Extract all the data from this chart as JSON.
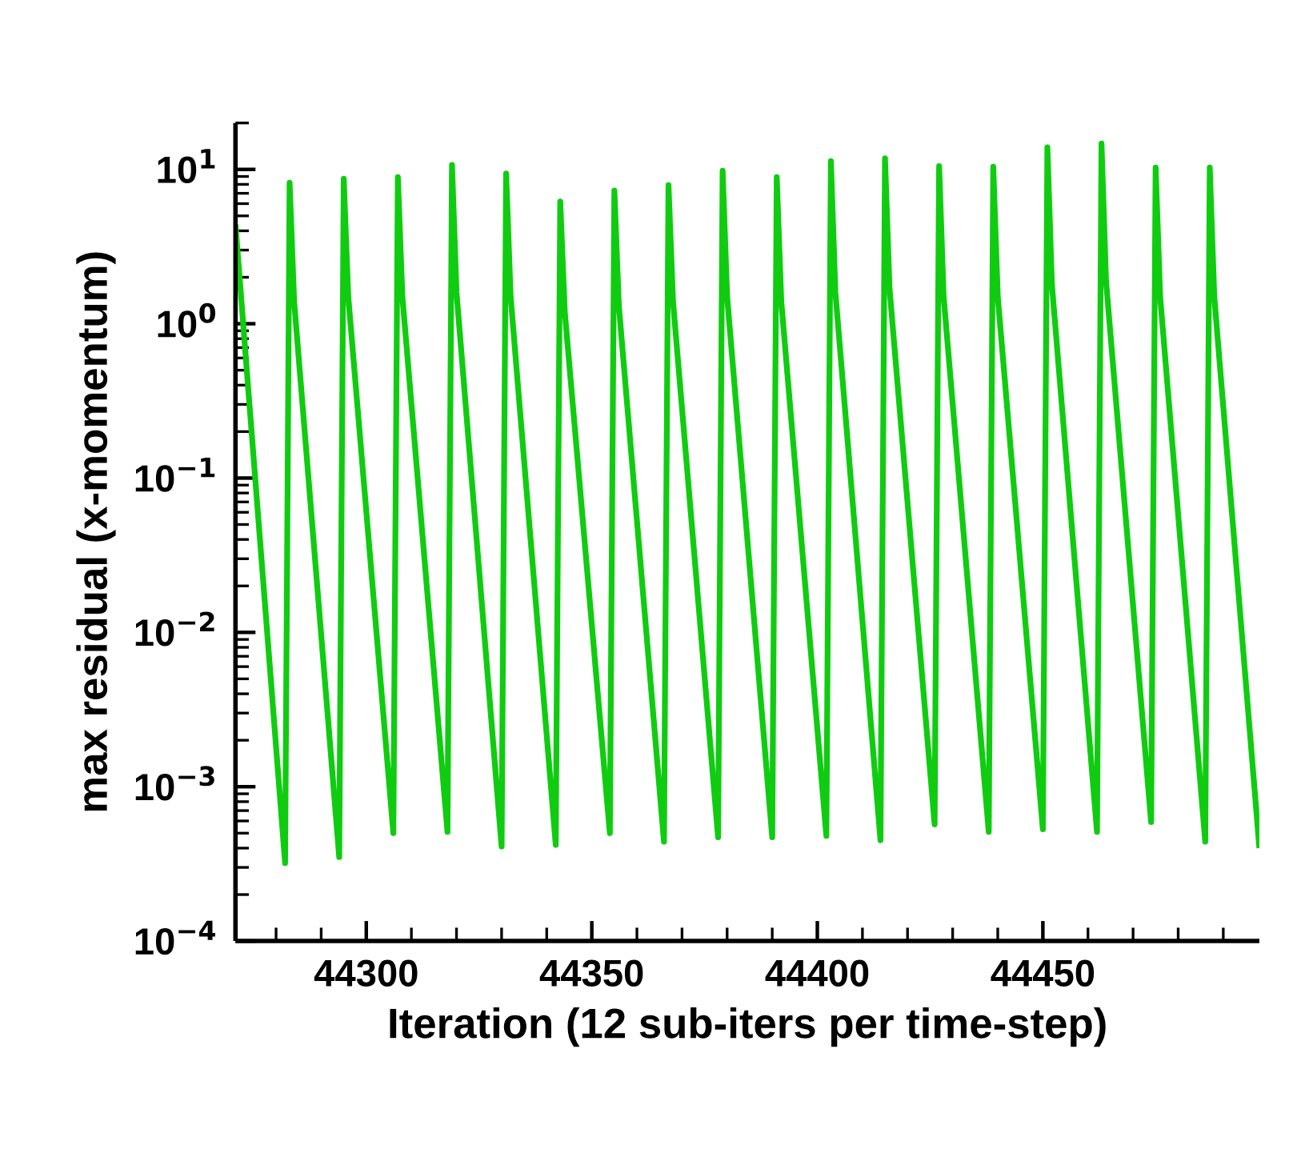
{
  "chart_data": {
    "type": "line",
    "xlabel": "Iteration (12 sub-iters per time-step)",
    "ylabel": "max residual (x-momentum)",
    "log": "y",
    "grid": false,
    "legend": false,
    "marker": "none",
    "line_style": "solid",
    "xlim": [
      44271,
      44498
    ],
    "xticks": [
      {
        "value": 44280,
        "label": null
      },
      {
        "value": 44290,
        "label": null
      },
      44300,
      {
        "value": 44310,
        "label": null
      },
      {
        "value": 44320,
        "label": null
      },
      {
        "value": 44330,
        "label": null
      },
      {
        "value": 44340,
        "label": null
      },
      44350,
      {
        "value": 44360,
        "label": null
      },
      {
        "value": 44370,
        "label": null
      },
      {
        "value": 44380,
        "label": null
      },
      {
        "value": 44390,
        "label": null
      },
      44400,
      {
        "value": 44410,
        "label": null
      },
      {
        "value": 44420,
        "label": null
      },
      {
        "value": 44430,
        "label": null
      },
      {
        "value": 44440,
        "label": null
      },
      44450,
      {
        "value": 44460,
        "label": null
      },
      {
        "value": 44470,
        "label": null
      },
      {
        "value": 44480,
        "label": null
      },
      {
        "value": 44490,
        "label": null
      }
    ],
    "ylim": [
      0.0001,
      20
    ],
    "yticks": [
      {
        "value": 0.0001,
        "label": "10$^{−4}$"
      },
      {
        "value": 0.001,
        "label": "10$^{−3}$"
      },
      {
        "value": 0.01,
        "label": "10$^{−2}$"
      },
      {
        "value": 0.1,
        "label": "10$^{−1}$"
      },
      {
        "value": 1,
        "label": "10$^{0}$"
      },
      {
        "value": 10,
        "label": "10$^{1}$"
      }
    ],
    "series": [
      {
        "color": "#10cc10",
        "x": [
          44271,
          44282,
          44283,
          44284,
          44294,
          44295,
          44296,
          44306,
          44307,
          44308,
          44318,
          44319,
          44320,
          44330,
          44331,
          44332,
          44342,
          44343,
          44344,
          44354,
          44355,
          44356,
          44366,
          44367,
          44368,
          44378,
          44379,
          44380,
          44390,
          44391,
          44392,
          44402,
          44403,
          44404,
          44414,
          44415,
          44416,
          44426,
          44427,
          44428,
          44438,
          44439,
          44440,
          44450,
          44451,
          44452,
          44462,
          44463,
          44464,
          44474,
          44475,
          44476,
          44486,
          44487,
          44488,
          44498
        ],
        "values": [
          4.4,
          0.00032,
          8.2,
          1.4,
          0.00035,
          8.7,
          1.5,
          0.0005,
          8.9,
          1.5,
          0.00051,
          10.7,
          1.6,
          0.00041,
          9.4,
          1.5,
          0.00042,
          6.2,
          1.2,
          0.0005,
          7.3,
          1.3,
          0.00044,
          7.9,
          1.4,
          0.00047,
          9.8,
          1.5,
          0.00047,
          8.9,
          1.4,
          0.00048,
          11.3,
          1.6,
          0.00045,
          11.8,
          1.7,
          0.00057,
          10.5,
          1.5,
          0.00051,
          10.4,
          1.5,
          0.00053,
          13.9,
          1.8,
          0.00051,
          14.7,
          1.9,
          0.00059,
          10.3,
          1.5,
          0.00044,
          10.3,
          1.5,
          0.0004
        ]
      }
    ]
  }
}
